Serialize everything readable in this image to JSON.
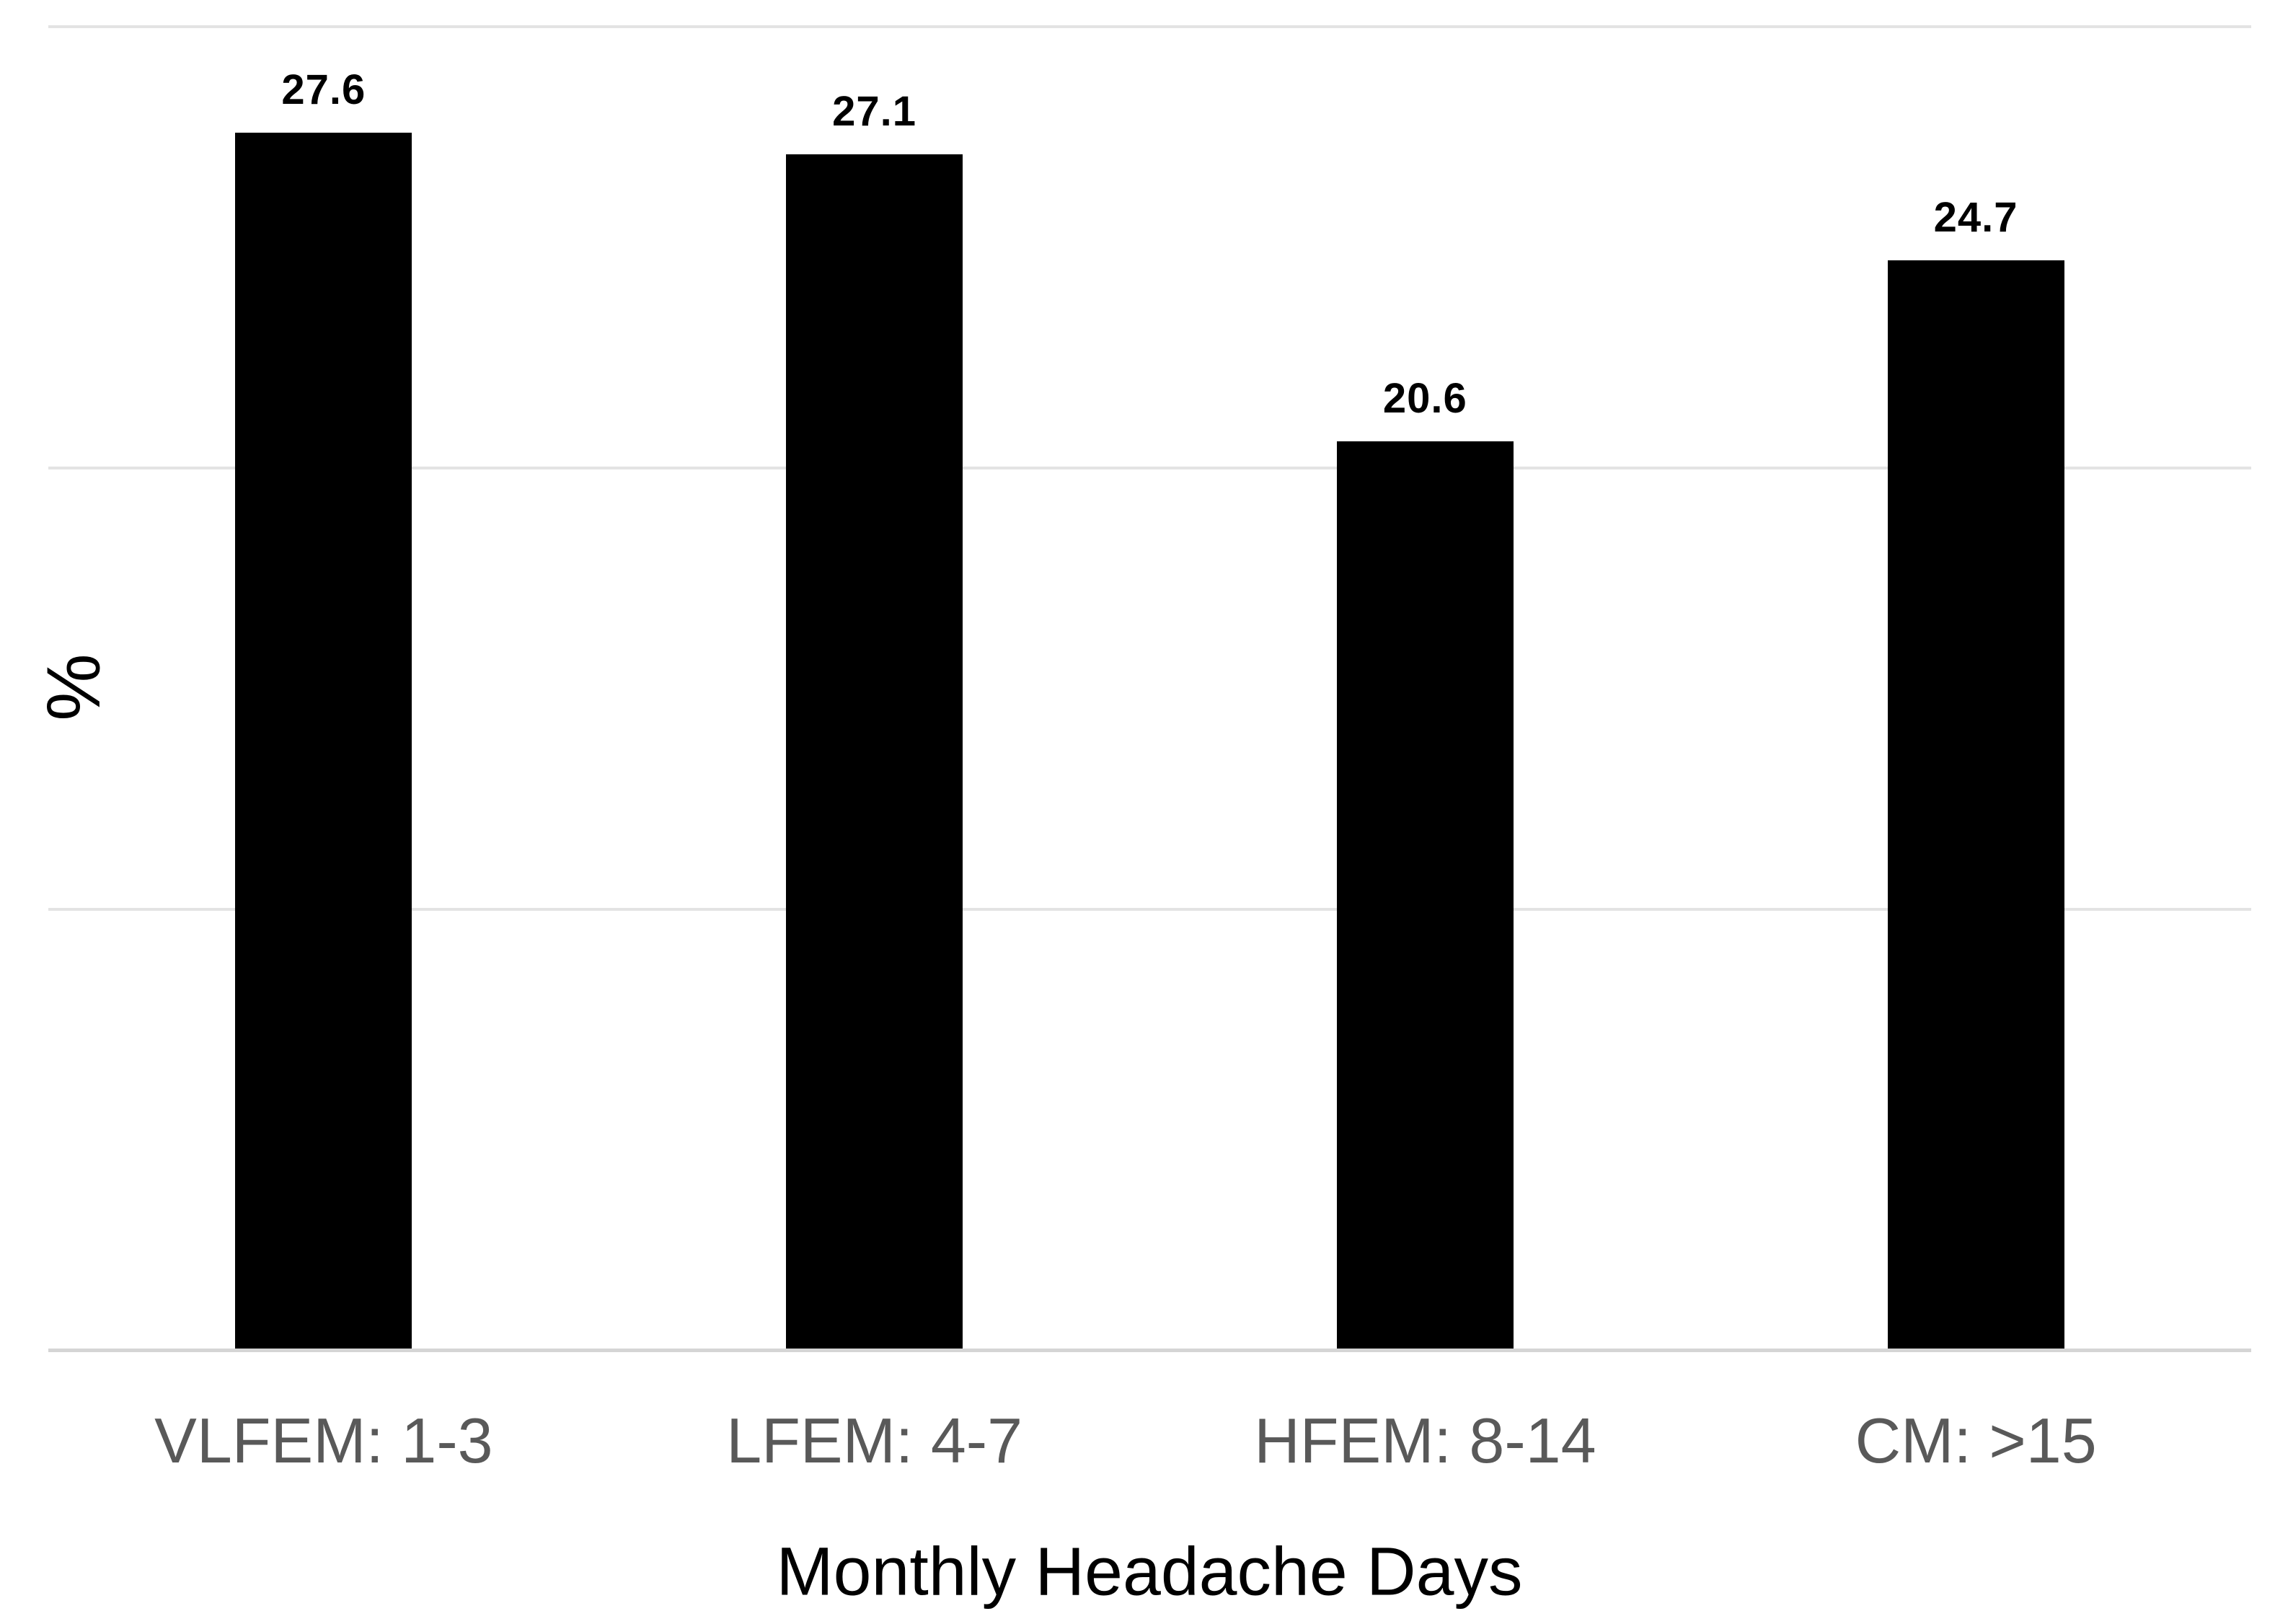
{
  "chart_data": {
    "type": "bar",
    "title": "",
    "categories": [
      "VLFEM: 1-3",
      "LFEM: 4-7",
      "HFEM: 8-14",
      "CM: >15"
    ],
    "values": [
      27.6,
      27.1,
      20.6,
      24.7
    ],
    "value_labels": [
      "27.6",
      "27.1",
      "20.6",
      "24.7"
    ],
    "xlabel": "Monthly Headache Days",
    "ylabel": "%",
    "ylim": [
      0,
      30
    ],
    "gridline_step": 10,
    "grid": "horizontal",
    "legend": "none",
    "y_tick_labels_shown": false,
    "value_labels_shown": true,
    "colors": {
      "bar": "#000000",
      "value_label": "#000000",
      "category_label": "#595959",
      "gridline": "#e3e3e3",
      "axis_line": "#d5d5d5",
      "background": "#ffffff",
      "axis_title": "#000000"
    }
  }
}
